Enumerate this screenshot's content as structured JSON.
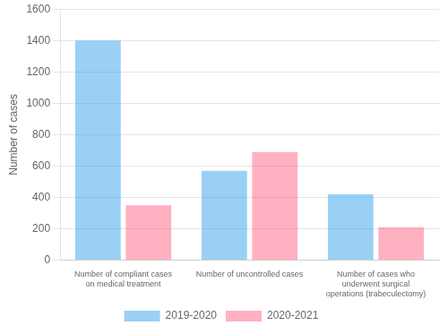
{
  "chart_data": {
    "type": "bar",
    "categories": [
      "Number of compliant cases\non medical treatment",
      "Number of uncontrolled cases",
      "Number of cases who\nunderwent surgical\noperations (trabeculectomy)"
    ],
    "series": [
      {
        "name": "2019-2020",
        "values": [
          1400,
          570,
          420
        ]
      },
      {
        "name": "2020-2021",
        "values": [
          350,
          690,
          210
        ]
      }
    ],
    "ylabel": "Number of cases",
    "ylim": [
      0,
      1600
    ],
    "yticks": [
      0,
      200,
      400,
      600,
      800,
      1000,
      1200,
      1400,
      1600
    ],
    "grid": true,
    "legend": "bottom"
  }
}
